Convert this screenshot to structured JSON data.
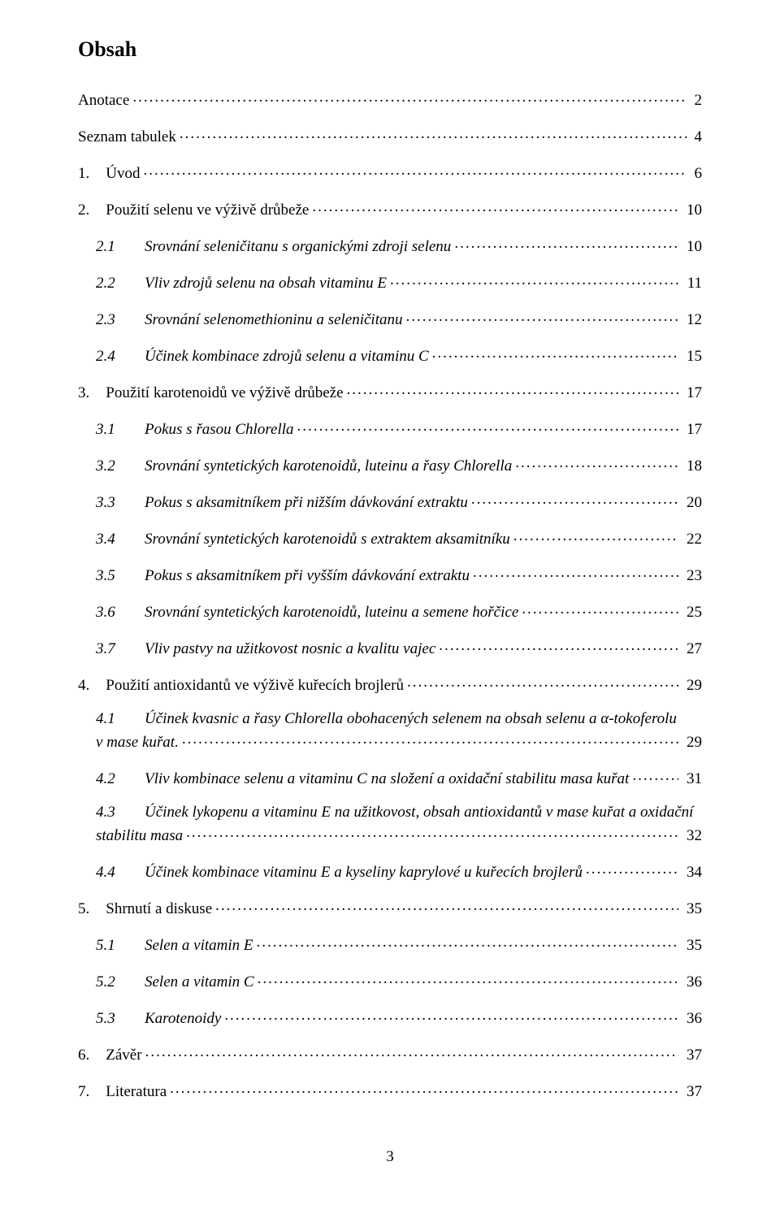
{
  "title": "Obsah",
  "page_number": "3",
  "entries": [
    {
      "num": "",
      "label": "Anotace",
      "page": "2",
      "indent": 0,
      "italic": false
    },
    {
      "num": "",
      "label": "Seznam tabulek",
      "page": "4",
      "indent": 0,
      "italic": false
    },
    {
      "num": "1.",
      "label": "Úvod",
      "page": "6",
      "indent": 0,
      "italic": false
    },
    {
      "num": "2.",
      "label": "Použití selenu ve výživě drůbeže",
      "page": "10",
      "indent": 0,
      "italic": false
    },
    {
      "num": "2.1",
      "label": "Srovnání seleničitanu s organickými zdroji selenu",
      "page": "10",
      "indent": 1,
      "italic": true
    },
    {
      "num": "2.2",
      "label": "Vliv zdrojů selenu na obsah vitaminu E",
      "page": "11",
      "indent": 1,
      "italic": true
    },
    {
      "num": "2.3",
      "label": "Srovnání selenomethioninu a seleničitanu",
      "page": "12",
      "indent": 1,
      "italic": true
    },
    {
      "num": "2.4",
      "label": "Účinek kombinace zdrojů selenu a vitaminu C",
      "page": "15",
      "indent": 1,
      "italic": true
    },
    {
      "num": "3.",
      "label": "Použití karotenoidů ve výživě drůbeže",
      "page": "17",
      "indent": 0,
      "italic": false
    },
    {
      "num": "3.1",
      "label": "Pokus s řasou Chlorella",
      "page": "17",
      "indent": 1,
      "italic": true
    },
    {
      "num": "3.2",
      "label": "Srovnání syntetických karotenoidů, luteinu a řasy Chlorella",
      "page": "18",
      "indent": 1,
      "italic": true
    },
    {
      "num": "3.3",
      "label": "Pokus s aksamitníkem při nižším dávkování extraktu",
      "page": "20",
      "indent": 1,
      "italic": true
    },
    {
      "num": "3.4",
      "label": "Srovnání syntetických karotenoidů s extraktem aksamitníku",
      "page": "22",
      "indent": 1,
      "italic": true
    },
    {
      "num": "3.5",
      "label": "Pokus s aksamitníkem při vyšším dávkování extraktu",
      "page": "23",
      "indent": 1,
      "italic": true
    },
    {
      "num": "3.6",
      "label": "Srovnání syntetických karotenoidů, luteinu a semene hořčice",
      "page": "25",
      "indent": 1,
      "italic": true
    },
    {
      "num": "3.7",
      "label": "Vliv pastvy na užitkovost nosnic a kvalitu vajec",
      "page": "27",
      "indent": 1,
      "italic": true
    },
    {
      "num": "4.",
      "label": "Použití antioxidantů ve výživě kuřecích brojlerů",
      "page": "29",
      "indent": 0,
      "italic": false
    },
    {
      "num": "4.1",
      "label_line1": "Účinek kvasnic a řasy Chlorella obohacených selenem na obsah selenu a       α-tokoferolu",
      "label_line2": "v mase kuřat.",
      "page": "29",
      "indent": 1,
      "italic": true,
      "multiline": true
    },
    {
      "num": "4.2",
      "label": "Vliv kombinace selenu a vitaminu C na složení a oxidační stabilitu masa kuřat",
      "page": "31",
      "indent": 1,
      "italic": true
    },
    {
      "num": "4.3",
      "label_line1": "Účinek lykopenu a vitaminu E na užitkovost, obsah antioxidantů v mase kuřat a oxidační",
      "label_line2": "stabilitu masa",
      "page": "32",
      "indent": 1,
      "italic": true,
      "multiline": true
    },
    {
      "num": "4.4",
      "label": "Účinek kombinace vitaminu E a kyseliny kaprylové u kuřecích brojlerů",
      "page": "34",
      "indent": 1,
      "italic": true
    },
    {
      "num": "5.",
      "label": "Shrnutí a diskuse",
      "page": "35",
      "indent": 0,
      "italic": false
    },
    {
      "num": "5.1",
      "label": "Selen a vitamin E",
      "page": "35",
      "indent": 1,
      "italic": true
    },
    {
      "num": "5.2",
      "label": "Selen a vitamin C",
      "page": "36",
      "indent": 1,
      "italic": true
    },
    {
      "num": "5.3",
      "label": "Karotenoidy",
      "page": "36",
      "indent": 1,
      "italic": true
    },
    {
      "num": "6.",
      "label": "Závěr",
      "page": "37",
      "indent": 0,
      "italic": false
    },
    {
      "num": "7.",
      "label": "Literatura",
      "page": "37",
      "indent": 0,
      "italic": false
    }
  ]
}
